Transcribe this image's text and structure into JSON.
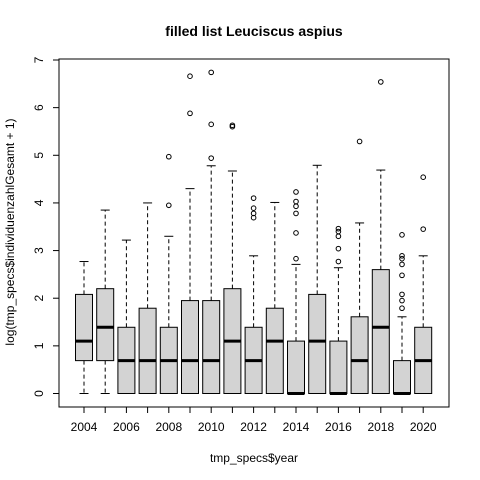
{
  "chart_data": {
    "type": "boxplot",
    "title": "filled list Leuciscus aspius",
    "xlabel": "tmp_specs$year",
    "ylabel": "log(tmp_specs$individuenzahlGesamt + 1)",
    "ylim": [
      0,
      7
    ],
    "y_ticks": [
      "0",
      "1",
      "2",
      "3",
      "4",
      "5",
      "6",
      "7"
    ],
    "x_tick_labels": [
      "2004",
      "2006",
      "2008",
      "2010",
      "2012",
      "2014",
      "2016",
      "2018",
      "2020"
    ],
    "grid": false,
    "box_color": "#d3d3d3",
    "boxes": [
      {
        "year": "2004",
        "min": 0.0,
        "q1": 0.69,
        "median": 1.1,
        "q3": 2.08,
        "max": 2.77,
        "outliers": []
      },
      {
        "year": "2005",
        "min": 0.0,
        "q1": 0.69,
        "median": 1.39,
        "q3": 2.2,
        "max": 3.85,
        "outliers": []
      },
      {
        "year": "2006",
        "min": 0.0,
        "q1": 0.0,
        "median": 0.69,
        "q3": 1.39,
        "max": 3.22,
        "outliers": []
      },
      {
        "year": "2007",
        "min": 0.0,
        "q1": 0.0,
        "median": 0.69,
        "q3": 1.79,
        "max": 4.0,
        "outliers": []
      },
      {
        "year": "2008",
        "min": 0.0,
        "q1": 0.0,
        "median": 0.69,
        "q3": 1.39,
        "max": 3.3,
        "outliers": [
          3.95,
          4.97
        ]
      },
      {
        "year": "2009",
        "min": 0.0,
        "q1": 0.0,
        "median": 0.69,
        "q3": 1.95,
        "max": 4.3,
        "outliers": [
          5.88,
          6.66
        ]
      },
      {
        "year": "2010",
        "min": 0.0,
        "q1": 0.0,
        "median": 0.69,
        "q3": 1.95,
        "max": 4.78,
        "outliers": [
          4.94,
          5.65,
          6.74
        ]
      },
      {
        "year": "2011",
        "min": 0.0,
        "q1": 0.0,
        "median": 1.1,
        "q3": 2.2,
        "max": 4.67,
        "outliers": [
          5.6,
          5.63
        ]
      },
      {
        "year": "2012",
        "min": 0.0,
        "q1": 0.0,
        "median": 0.69,
        "q3": 1.39,
        "max": 2.89,
        "outliers": [
          3.69,
          3.78,
          3.89,
          4.1
        ]
      },
      {
        "year": "2013",
        "min": 0.0,
        "q1": 0.0,
        "median": 1.1,
        "q3": 1.79,
        "max": 4.01,
        "outliers": []
      },
      {
        "year": "2014",
        "min": 0.0,
        "q1": 0.0,
        "median": 0.0,
        "q3": 1.1,
        "max": 2.71,
        "outliers": [
          2.83,
          3.37,
          3.78,
          3.93,
          4.03,
          4.23
        ]
      },
      {
        "year": "2015",
        "min": 0.0,
        "q1": 0.0,
        "median": 1.1,
        "q3": 2.08,
        "max": 4.79,
        "outliers": []
      },
      {
        "year": "2016",
        "min": 0.0,
        "q1": 0.0,
        "median": 0.0,
        "q3": 1.1,
        "max": 2.64,
        "outliers": [
          2.77,
          3.04,
          3.3,
          3.4,
          3.46
        ]
      },
      {
        "year": "2017",
        "min": 0.0,
        "q1": 0.0,
        "median": 0.69,
        "q3": 1.61,
        "max": 3.58,
        "outliers": [
          5.29
        ]
      },
      {
        "year": "2018",
        "min": 0.0,
        "q1": 0.0,
        "median": 1.39,
        "q3": 2.6,
        "max": 4.69,
        "outliers": [
          6.54
        ]
      },
      {
        "year": "2019",
        "min": 0.0,
        "q1": 0.0,
        "median": 0.0,
        "q3": 0.69,
        "max": 1.61,
        "outliers": [
          1.79,
          1.95,
          2.08,
          2.48,
          2.71,
          2.83,
          2.89,
          3.33
        ]
      },
      {
        "year": "2020",
        "min": 0.0,
        "q1": 0.0,
        "median": 0.69,
        "q3": 1.39,
        "max": 2.89,
        "outliers": [
          3.45,
          4.54
        ]
      }
    ]
  }
}
